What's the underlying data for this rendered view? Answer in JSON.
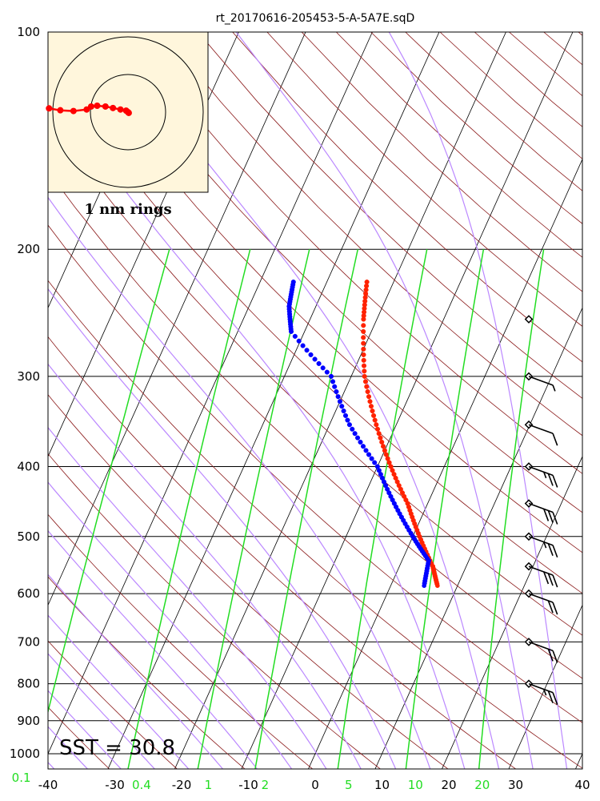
{
  "chart_data": {
    "type": "skew-t",
    "title": "rt_20170616-205453-5-A-5A7E.sqD",
    "x_ticks": [
      -40,
      -30,
      -20,
      -10,
      0,
      10,
      20,
      30,
      40
    ],
    "y_ticks": [
      100,
      200,
      300,
      400,
      500,
      600,
      700,
      800,
      900,
      1000
    ],
    "mixing_ratio_labels": [
      {
        "text": "0.1",
        "T": -44
      },
      {
        "text": "0.4",
        "T": -26
      },
      {
        "text": "1",
        "T": -16
      },
      {
        "text": "2",
        "T": -7.5
      },
      {
        "text": "5",
        "T": 5
      },
      {
        "text": "10",
        "T": 15
      },
      {
        "text": "20",
        "T": 25
      }
    ],
    "sst_label": "SST = 30.8",
    "hodograph_label": "1 nm rings",
    "temperature_profile": [
      {
        "p": 222,
        "T": -24
      },
      {
        "p": 250,
        "T": -22
      },
      {
        "p": 300,
        "T": -18
      },
      {
        "p": 350,
        "T": -13
      },
      {
        "p": 400,
        "T": -8
      },
      {
        "p": 450,
        "T": -3
      },
      {
        "p": 500,
        "T": 1
      },
      {
        "p": 550,
        "T": 5
      },
      {
        "p": 585,
        "T": 7
      }
    ],
    "dewpoint_profile": [
      {
        "p": 222,
        "T": -35
      },
      {
        "p": 240,
        "T": -34
      },
      {
        "p": 260,
        "T": -32
      },
      {
        "p": 300,
        "T": -23
      },
      {
        "p": 350,
        "T": -17
      },
      {
        "p": 400,
        "T": -10
      },
      {
        "p": 450,
        "T": -5
      },
      {
        "p": 500,
        "T": 0
      },
      {
        "p": 540,
        "T": 4
      },
      {
        "p": 585,
        "T": 5
      }
    ],
    "wind_barbs": [
      {
        "p": 250,
        "speed_kt": 0
      },
      {
        "p": 300,
        "speed_kt": 5
      },
      {
        "p": 350,
        "speed_kt": 10
      },
      {
        "p": 400,
        "speed_kt": 25
      },
      {
        "p": 450,
        "speed_kt": 30
      },
      {
        "p": 500,
        "speed_kt": 25
      },
      {
        "p": 550,
        "speed_kt": 30
      },
      {
        "p": 600,
        "speed_kt": 20
      },
      {
        "p": 700,
        "speed_kt": 20
      },
      {
        "p": 800,
        "speed_kt": 25
      }
    ],
    "hodograph_points": [
      {
        "u": -2.1,
        "v": 0.1
      },
      {
        "u": -1.8,
        "v": 0.05
      },
      {
        "u": -1.45,
        "v": 0.03
      },
      {
        "u": -1.1,
        "v": 0.07
      },
      {
        "u": -0.98,
        "v": 0.15
      },
      {
        "u": -0.82,
        "v": 0.17
      },
      {
        "u": -0.6,
        "v": 0.15
      },
      {
        "u": -0.4,
        "v": 0.11
      },
      {
        "u": -0.2,
        "v": 0.07
      },
      {
        "u": -0.05,
        "v": 0.04
      },
      {
        "u": 0,
        "v": 0
      },
      {
        "u": 0.02,
        "v": -0.02
      }
    ],
    "xlim": [
      -40,
      40
    ],
    "ylim": [
      1100,
      100
    ],
    "y_scale": "log",
    "colors": {
      "temperature": "#ff2200",
      "dewpoint": "#0000ff",
      "isotherm": "#000000",
      "dry_adiabat": "#8b1a1a",
      "moist_adiabat": "#bb88ff",
      "mixing_ratio": "#22dd22",
      "hodograph_bg": "#fff6dc"
    }
  }
}
